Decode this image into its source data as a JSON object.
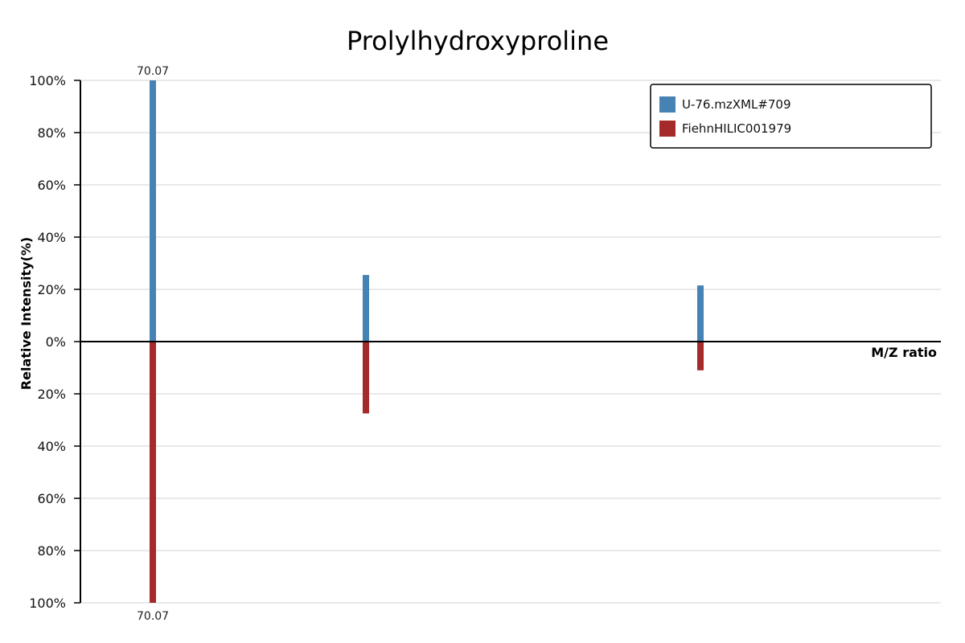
{
  "chart_data": {
    "type": "bar",
    "title": "Prolylhydroxyproline",
    "xlabel": "M/Z ratio",
    "ylabel": "Relative Intensity(%)",
    "ylim": [
      -100,
      100
    ],
    "y_ticks": [
      "100%",
      "80%",
      "60%",
      "40%",
      "20%",
      "0%",
      "20%",
      "40%",
      "60%",
      "80%",
      "100%"
    ],
    "grid": true,
    "legend_position": "top-right",
    "series": [
      {
        "name": "U-76.mzXML#709",
        "color": "#4682b4",
        "direction": "up",
        "peaks": [
          {
            "intensity": 100,
            "label": "70.07"
          },
          {
            "intensity": 25.5,
            "label": ""
          },
          {
            "intensity": 21.5,
            "label": ""
          }
        ]
      },
      {
        "name": "FiehnHILIC001979",
        "color": "#a52a2a",
        "direction": "down",
        "peaks": [
          {
            "intensity": 100,
            "label": "70.07"
          },
          {
            "intensity": 27.5,
            "label": ""
          },
          {
            "intensity": 11,
            "label": ""
          }
        ]
      }
    ]
  }
}
